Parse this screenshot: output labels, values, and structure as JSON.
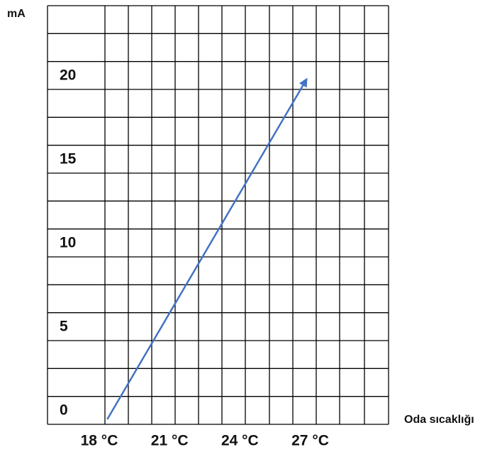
{
  "chart_data": {
    "type": "line",
    "x_label": "Oda sıcaklığı",
    "y_label": "mA",
    "x": [
      18.1,
      26.6
    ],
    "values": [
      0.3,
      20.6
    ],
    "color": "#4472c4",
    "xlim": [
      15.55,
      30.1
    ],
    "ylim": [
      0,
      25
    ],
    "xticks": [
      {
        "value": 18,
        "label": "18 °C"
      },
      {
        "value": 21,
        "label": "21 °C"
      },
      {
        "value": 24,
        "label": "24 °C"
      },
      {
        "value": 27,
        "label": "27 °C"
      }
    ],
    "yticks": [
      0,
      5,
      10,
      15,
      20
    ],
    "grid": true
  }
}
